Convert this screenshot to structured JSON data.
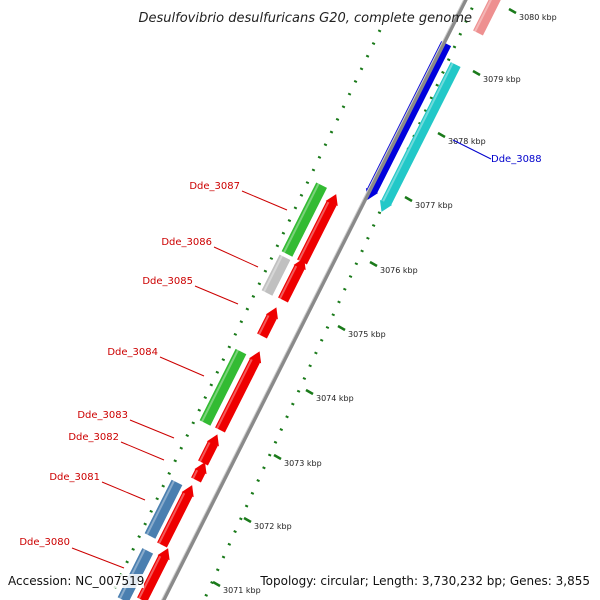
{
  "title": "Desulfovibrio desulfuricans G20, complete genome",
  "footer": {
    "accession_label": "Accession: NC_007519",
    "topology_label": "Topology: circular; Length: 3,730,232 bp; Genes: 3,855"
  },
  "ticks": [
    "3071 kbp",
    "3072 kbp",
    "3073 kbp",
    "3074 kbp",
    "3075 kbp",
    "3076 kbp",
    "3077 kbp",
    "3078 kbp",
    "3079 kbp",
    "3080 kbp"
  ],
  "genes": [
    {
      "label": "Dde_3080",
      "color": "#cc0000"
    },
    {
      "label": "Dde_3081",
      "color": "#cc0000"
    },
    {
      "label": "Dde_3082",
      "color": "#cc0000"
    },
    {
      "label": "Dde_3083",
      "color": "#cc0000"
    },
    {
      "label": "Dde_3084",
      "color": "#cc0000"
    },
    {
      "label": "Dde_3085",
      "color": "#cc0000"
    },
    {
      "label": "Dde_3086",
      "color": "#cc0000"
    },
    {
      "label": "Dde_3087",
      "color": "#cc0000"
    },
    {
      "label": "Dde_3088",
      "color": "#0000cc"
    }
  ],
  "colors": {
    "forward_strand": "#ee0000",
    "reverse_strand": "#0000dd",
    "cyan_feature": "#22c8c8",
    "green_feature": "#33bb33",
    "steelblue_feature": "#4a7fb0",
    "gray_feature": "#c0c0c0",
    "pink_feature": "#ee9090",
    "backbone": "#8a8a8a",
    "tick_mark": "#1a7a1a"
  }
}
